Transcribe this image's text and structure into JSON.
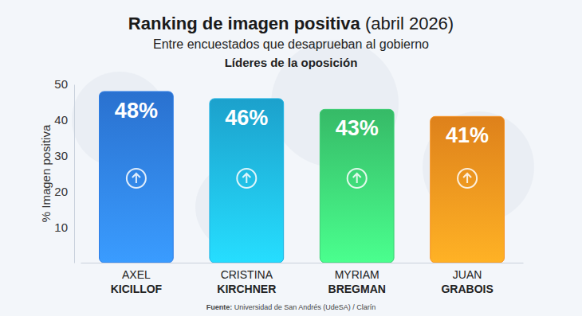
{
  "chart_data": {
    "type": "bar",
    "title": "Ranking de imagen positiva (abril 2026)",
    "subtitle": [
      "Entre encuestados que desaprueban al gobierno",
      "Líderes de la oposición"
    ],
    "y_label": "% Imagen positiva",
    "categories": [
      "AXEL KICILLOF",
      "CRISTINA KIRCHNER",
      "MYRIAM BREGMAN",
      "JUAN GRABOIS"
    ],
    "values": [
      48,
      46,
      43,
      41
    ],
    "value_labels": [
      "48%",
      "46%",
      "43%",
      "41%"
    ],
    "colors": [
      "#2f7ee6",
      "#1fb3e3",
      "#3ccf73",
      "#f7901e"
    ],
    "ylim": [
      0,
      50
    ],
    "yticks": [
      10,
      20,
      30,
      40,
      50
    ],
    "grid": false,
    "data_labels": true,
    "source": "Fuente: Universidad de San Andrés (UdeSA) / Clarín"
  }
}
